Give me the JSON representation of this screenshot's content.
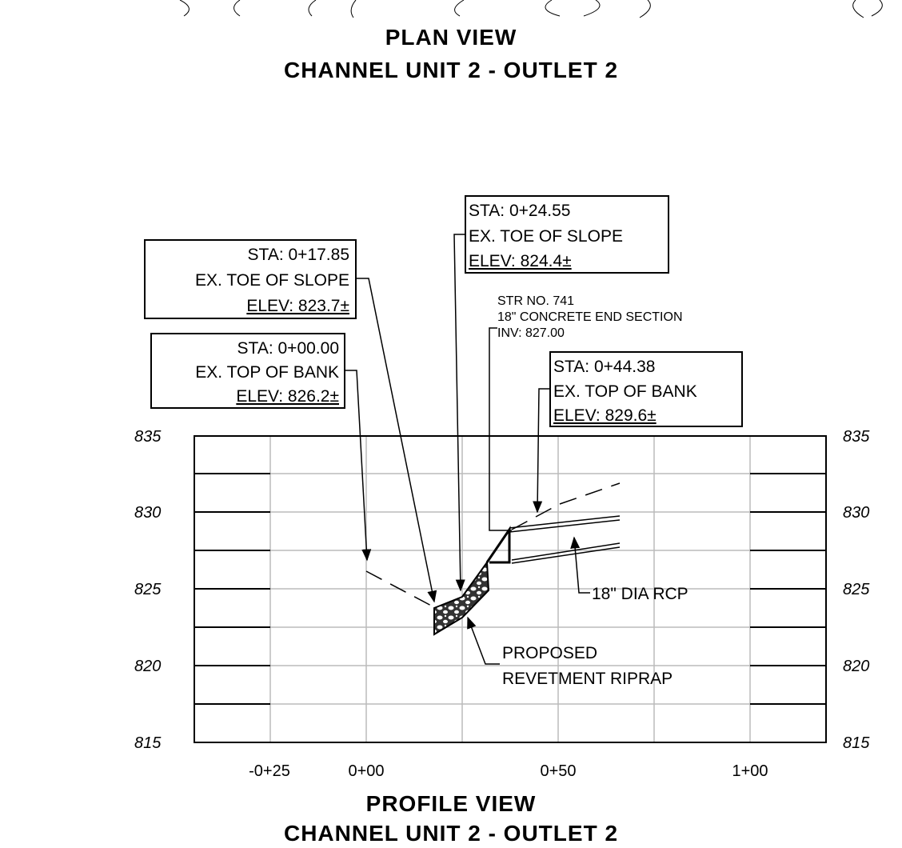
{
  "plan_title": {
    "line1": "PLAN VIEW",
    "line2": "CHANNEL UNIT 2 - OUTLET 2"
  },
  "profile_title": {
    "line1": "PROFILE VIEW",
    "line2": "CHANNEL UNIT 2 - OUTLET 2"
  },
  "elevation_labels": [
    "835",
    "830",
    "825",
    "820",
    "815"
  ],
  "station_labels": [
    "-0+25",
    "0+00",
    "0+50",
    "1+00"
  ],
  "callouts": [
    {
      "sta": "STA: 0+17.85",
      "desc": "EX. TOE OF SLOPE",
      "elev": "ELEV: 823.7±"
    },
    {
      "sta": "STA: 0+00.00",
      "desc": "EX. TOP OF BANK",
      "elev": "ELEV: 826.2±"
    },
    {
      "sta": "STA: 0+24.55",
      "desc": "EX. TOE OF SLOPE",
      "elev": "ELEV: 824.4±"
    },
    {
      "sta": "STA: 0+44.38",
      "desc": "EX. TOP OF BANK",
      "elev": "ELEV: 829.6±"
    }
  ],
  "structure_note": [
    "STR NO. 741",
    "18\" CONCRETE END SECTION",
    "INV: 827.00"
  ],
  "pipe_label": "18\" DIA RCP",
  "riprap_label": [
    "PROPOSED",
    "REVETMENT RIPRAP"
  ]
}
